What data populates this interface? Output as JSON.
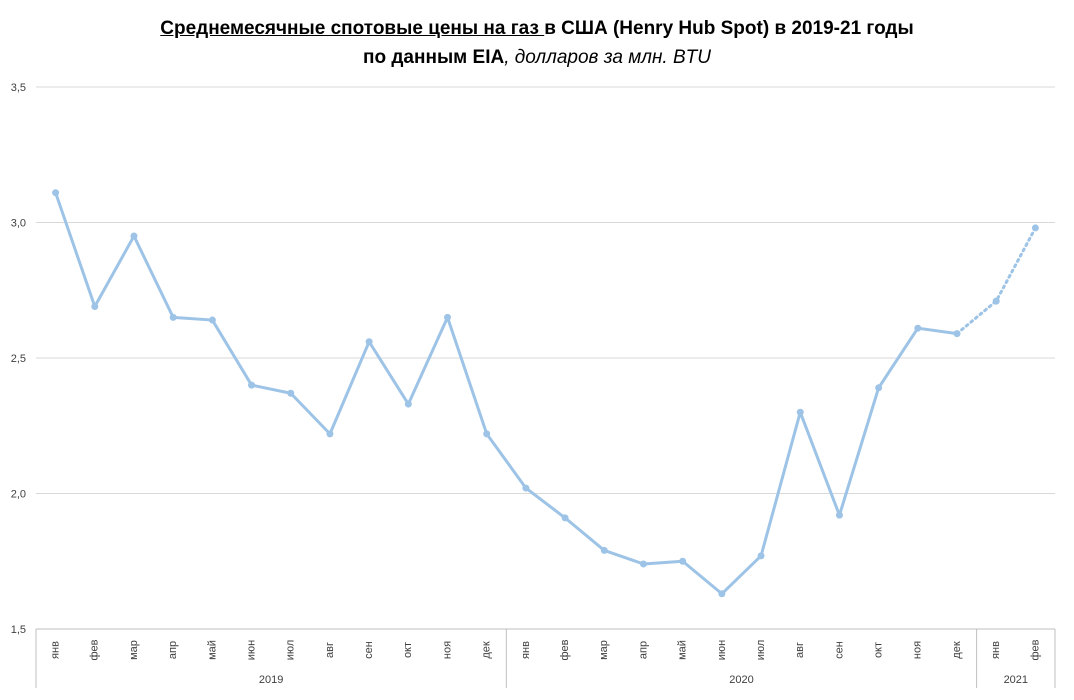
{
  "chart_data": {
    "type": "line",
    "title_underlined": "Среднемесячные спотовые цены на газ ",
    "title_rest": "в США (Henry Hub Spot) в 2019-21 годы",
    "title_line2_bold": "по данным EIA",
    "title_line2_italic": ", долларов за млн. BTU",
    "ylim": [
      1.5,
      3.5
    ],
    "yticks": [
      "1,5",
      "2,0",
      "2,5",
      "3,0",
      "3,5"
    ],
    "grid": true,
    "line_color": "#9dc3e6",
    "categories": [
      "янв",
      "фев",
      "мар",
      "апр",
      "май",
      "июн",
      "июл",
      "авг",
      "сен",
      "окт",
      "ноя",
      "дек",
      "янв",
      "фев",
      "мар",
      "апр",
      "май",
      "июн",
      "июл",
      "авг",
      "сен",
      "окт",
      "ноя",
      "дек",
      "янв",
      "фев"
    ],
    "groups": [
      {
        "label": "2019",
        "count": 12
      },
      {
        "label": "2020",
        "count": 12
      },
      {
        "label": "2021",
        "count": 2
      }
    ],
    "values": [
      3.11,
      2.69,
      2.95,
      2.65,
      2.64,
      2.4,
      2.37,
      2.22,
      2.56,
      2.33,
      2.65,
      2.22,
      2.02,
      1.91,
      1.79,
      1.74,
      1.75,
      1.63,
      1.77,
      2.3,
      1.92,
      2.39,
      2.61,
      2.59,
      2.71,
      2.98
    ],
    "dotted_from_index": 24
  }
}
